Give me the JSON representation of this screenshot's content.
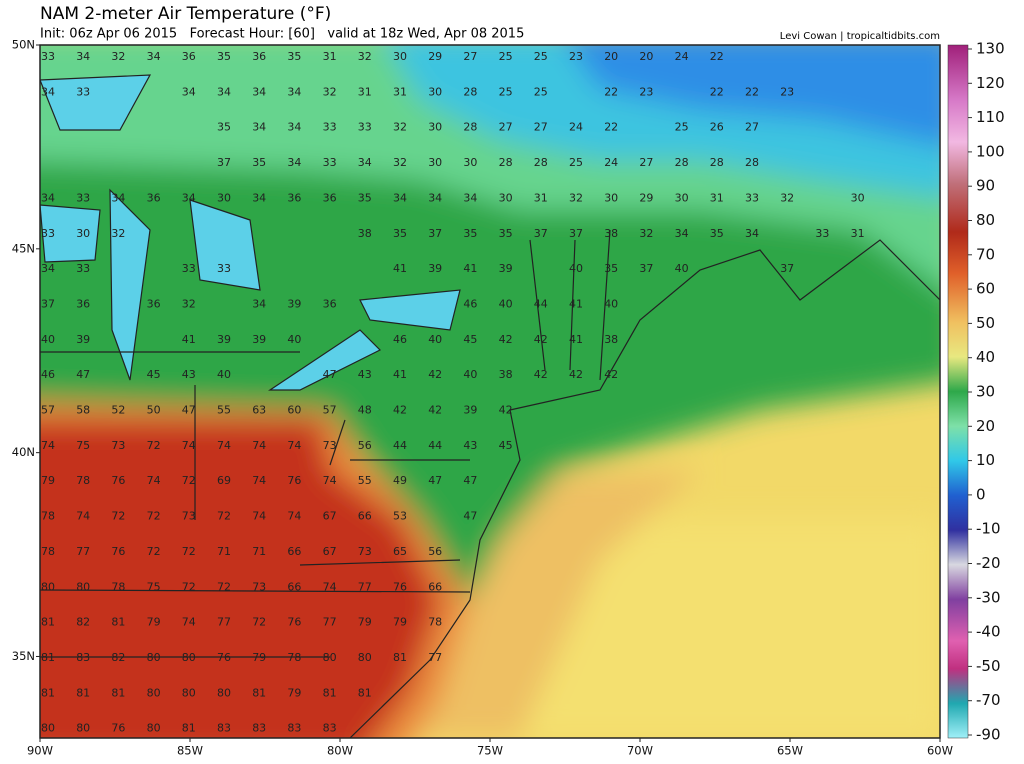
{
  "header": {
    "title": "NAM 2-meter Air Temperature (°F)",
    "subtitle": "Init: 06z Apr 06 2015   Forecast Hour: [60]   valid at 18z Wed, Apr 08 2015",
    "credit": "Levi Cowan | tropicaltidbits.com"
  },
  "map": {
    "xlim": [
      -90,
      -60
    ],
    "ylim": [
      33,
      50
    ],
    "xticks": [
      {
        "value": -90,
        "label": "90W"
      },
      {
        "value": -85,
        "label": "85W"
      },
      {
        "value": -80,
        "label": "80W"
      },
      {
        "value": -75,
        "label": "75W"
      },
      {
        "value": -70,
        "label": "70W"
      },
      {
        "value": -65,
        "label": "65W"
      },
      {
        "value": -60,
        "label": "60W"
      }
    ],
    "yticks": [
      {
        "value": 50,
        "label": "50N"
      },
      {
        "value": 45,
        "label": "45N"
      },
      {
        "value": 40,
        "label": "40N"
      },
      {
        "value": 35,
        "label": "35N"
      }
    ],
    "station_rows": [
      [
        33,
        34,
        32,
        34,
        36,
        35,
        36,
        35,
        31,
        32,
        30,
        29,
        27,
        25,
        25,
        23,
        20,
        20,
        24,
        22
      ],
      [
        34,
        33,
        null,
        null,
        34,
        34,
        34,
        34,
        32,
        31,
        31,
        30,
        28,
        25,
        25,
        null,
        22,
        23,
        null,
        22,
        22,
        23
      ],
      [
        null,
        null,
        null,
        null,
        null,
        35,
        34,
        34,
        33,
        33,
        32,
        30,
        28,
        27,
        27,
        24,
        22,
        null,
        25,
        26,
        27
      ],
      [
        null,
        null,
        null,
        null,
        null,
        37,
        35,
        34,
        33,
        34,
        32,
        30,
        30,
        28,
        28,
        25,
        24,
        27,
        28,
        28,
        28
      ],
      [
        34,
        33,
        34,
        36,
        34,
        30,
        34,
        36,
        36,
        35,
        34,
        34,
        34,
        30,
        31,
        32,
        30,
        29,
        30,
        31,
        33,
        32,
        null,
        30
      ],
      [
        33,
        30,
        32,
        null,
        null,
        null,
        null,
        null,
        null,
        38,
        35,
        37,
        35,
        35,
        37,
        37,
        38,
        32,
        34,
        35,
        34,
        null,
        33,
        31
      ],
      [
        34,
        33,
        null,
        null,
        33,
        33,
        null,
        null,
        null,
        null,
        41,
        39,
        41,
        39,
        null,
        40,
        35,
        37,
        40,
        null,
        null,
        37
      ],
      [
        37,
        36,
        null,
        36,
        32,
        null,
        34,
        39,
        36,
        null,
        null,
        null,
        46,
        40,
        44,
        41,
        40
      ],
      [
        40,
        39,
        null,
        null,
        41,
        39,
        39,
        40,
        null,
        null,
        46,
        40,
        45,
        42,
        42,
        41,
        38
      ],
      [
        46,
        47,
        null,
        45,
        43,
        40,
        null,
        null,
        47,
        43,
        41,
        42,
        40,
        38,
        42,
        42,
        42
      ],
      [
        57,
        58,
        52,
        50,
        47,
        55,
        63,
        60,
        57,
        48,
        42,
        42,
        39,
        42
      ],
      [
        74,
        75,
        73,
        72,
        74,
        74,
        74,
        74,
        73,
        56,
        44,
        44,
        43,
        45
      ],
      [
        79,
        78,
        76,
        74,
        72,
        69,
        74,
        76,
        74,
        55,
        49,
        47,
        47
      ],
      [
        78,
        74,
        72,
        72,
        73,
        72,
        74,
        74,
        67,
        66,
        53,
        null,
        47
      ],
      [
        78,
        77,
        76,
        72,
        72,
        71,
        71,
        66,
        67,
        73,
        65,
        56
      ],
      [
        80,
        80,
        78,
        75,
        72,
        72,
        73,
        66,
        74,
        77,
        76,
        66
      ],
      [
        81,
        82,
        81,
        79,
        74,
        77,
        72,
        76,
        77,
        79,
        79,
        78
      ],
      [
        81,
        83,
        82,
        80,
        80,
        76,
        79,
        78,
        80,
        80,
        81,
        77
      ],
      [
        81,
        81,
        81,
        80,
        80,
        80,
        81,
        79,
        81,
        81
      ],
      [
        80,
        80,
        76,
        80,
        81,
        83,
        83,
        83,
        83
      ]
    ]
  },
  "colorbar": {
    "ticks": [
      130,
      120,
      110,
      100,
      90,
      80,
      70,
      60,
      50,
      40,
      30,
      20,
      10,
      0,
      -10,
      -20,
      -30,
      -40,
      -50,
      -70,
      -90
    ]
  }
}
